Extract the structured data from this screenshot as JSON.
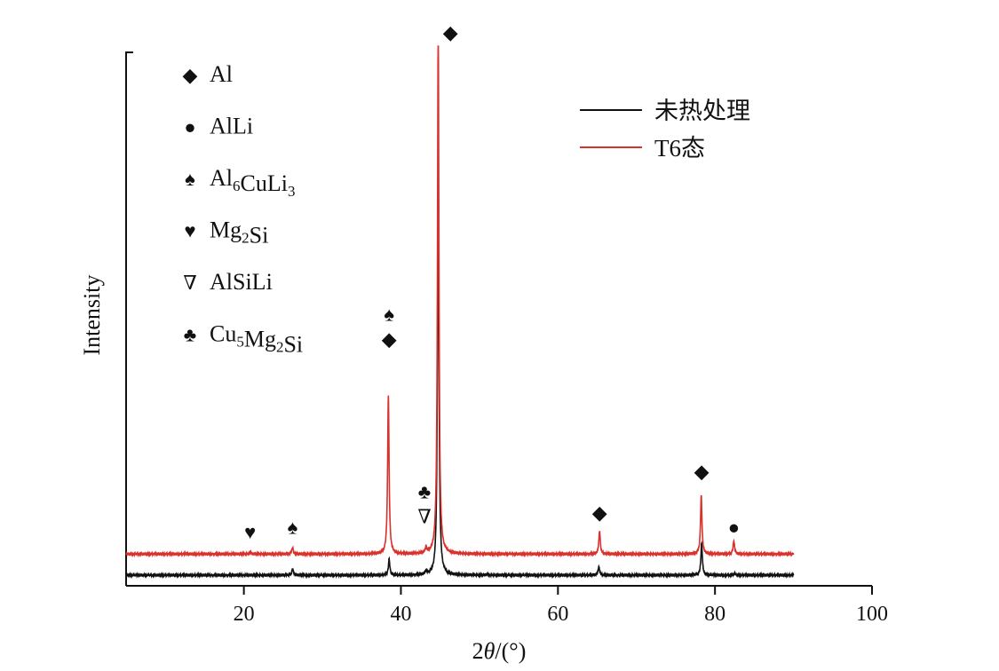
{
  "chart_data": {
    "type": "line",
    "title": "",
    "xlabel_prefix": "2",
    "xlabel_theta": "θ",
    "xlabel_suffix": "/(°)",
    "ylabel": "Intensity",
    "xlim": [
      5,
      100
    ],
    "xticks": [
      20,
      40,
      60,
      80,
      100
    ],
    "y_axis_ticks_labeled": false,
    "grid": false,
    "legend_position": "top-right",
    "series": [
      {
        "name": "未热处理",
        "color": "#111111",
        "x_range": [
          5,
          90
        ],
        "baseline": 0.0,
        "peaks": [
          {
            "x": 26.2,
            "h": 0.012
          },
          {
            "x": 38.5,
            "h": 0.03
          },
          {
            "x": 43.2,
            "h": 0.006
          },
          {
            "x": 44.75,
            "h": 0.78
          },
          {
            "x": 51.0,
            "h": 0.002
          },
          {
            "x": 65.2,
            "h": 0.016
          },
          {
            "x": 78.3,
            "h": 0.06
          },
          {
            "x": 82.5,
            "h": 0.004
          }
        ]
      },
      {
        "name": "T6态",
        "color": "#d9312b",
        "x_range": [
          5,
          90
        ],
        "baseline": 0.04,
        "peaks": [
          {
            "x": 20.8,
            "h": 0.004
          },
          {
            "x": 26.2,
            "h": 0.012
          },
          {
            "x": 38.4,
            "h": 0.3
          },
          {
            "x": 43.2,
            "h": 0.01
          },
          {
            "x": 44.75,
            "h": 1.0
          },
          {
            "x": 65.3,
            "h": 0.044
          },
          {
            "x": 78.25,
            "h": 0.11
          },
          {
            "x": 82.4,
            "h": 0.025
          }
        ]
      }
    ],
    "phase_legend": [
      {
        "symbol": "◆",
        "icon": "diamond-icon",
        "parts": [
          {
            "t": "Al",
            "sub": false
          }
        ]
      },
      {
        "symbol": "●",
        "icon": "circle-icon",
        "parts": [
          {
            "t": "AlLi",
            "sub": false
          }
        ]
      },
      {
        "symbol": "♠",
        "icon": "spade-icon",
        "parts": [
          {
            "t": "Al",
            "sub": false
          },
          {
            "t": "6",
            "sub": true
          },
          {
            "t": "CuLi",
            "sub": false
          },
          {
            "t": "3",
            "sub": true
          }
        ]
      },
      {
        "symbol": "♥",
        "icon": "heart-icon",
        "parts": [
          {
            "t": "Mg",
            "sub": false
          },
          {
            "t": "2",
            "sub": true
          },
          {
            "t": "Si",
            "sub": false
          }
        ]
      },
      {
        "symbol": "∇",
        "icon": "nabla-icon",
        "parts": [
          {
            "t": "AlSiLi",
            "sub": false
          }
        ]
      },
      {
        "symbol": "♣",
        "icon": "club-icon",
        "parts": [
          {
            "t": "Cu",
            "sub": false
          },
          {
            "t": "5",
            "sub": true
          },
          {
            "t": "Mg",
            "sub": false
          },
          {
            "t": "2",
            "sub": true
          },
          {
            "t": "Si",
            "sub": false
          }
        ]
      }
    ],
    "annotations": [
      {
        "x": 20.8,
        "y": 0.055,
        "symbols": [
          "♥"
        ]
      },
      {
        "x": 26.2,
        "y": 0.065,
        "symbols": [
          "♠"
        ]
      },
      {
        "x": 38.5,
        "y": 0.42,
        "symbols": [
          "◆",
          "♠"
        ]
      },
      {
        "x": 43.0,
        "y": 0.085,
        "symbols": [
          "∇",
          "♣"
        ]
      },
      {
        "x": 46.3,
        "y": 1.0,
        "symbols": [
          "◆"
        ]
      },
      {
        "x": 65.3,
        "y": 0.092,
        "symbols": [
          "◆"
        ]
      },
      {
        "x": 78.3,
        "y": 0.17,
        "symbols": [
          "◆"
        ]
      },
      {
        "x": 82.4,
        "y": 0.065,
        "symbols": [
          "●"
        ]
      }
    ]
  }
}
